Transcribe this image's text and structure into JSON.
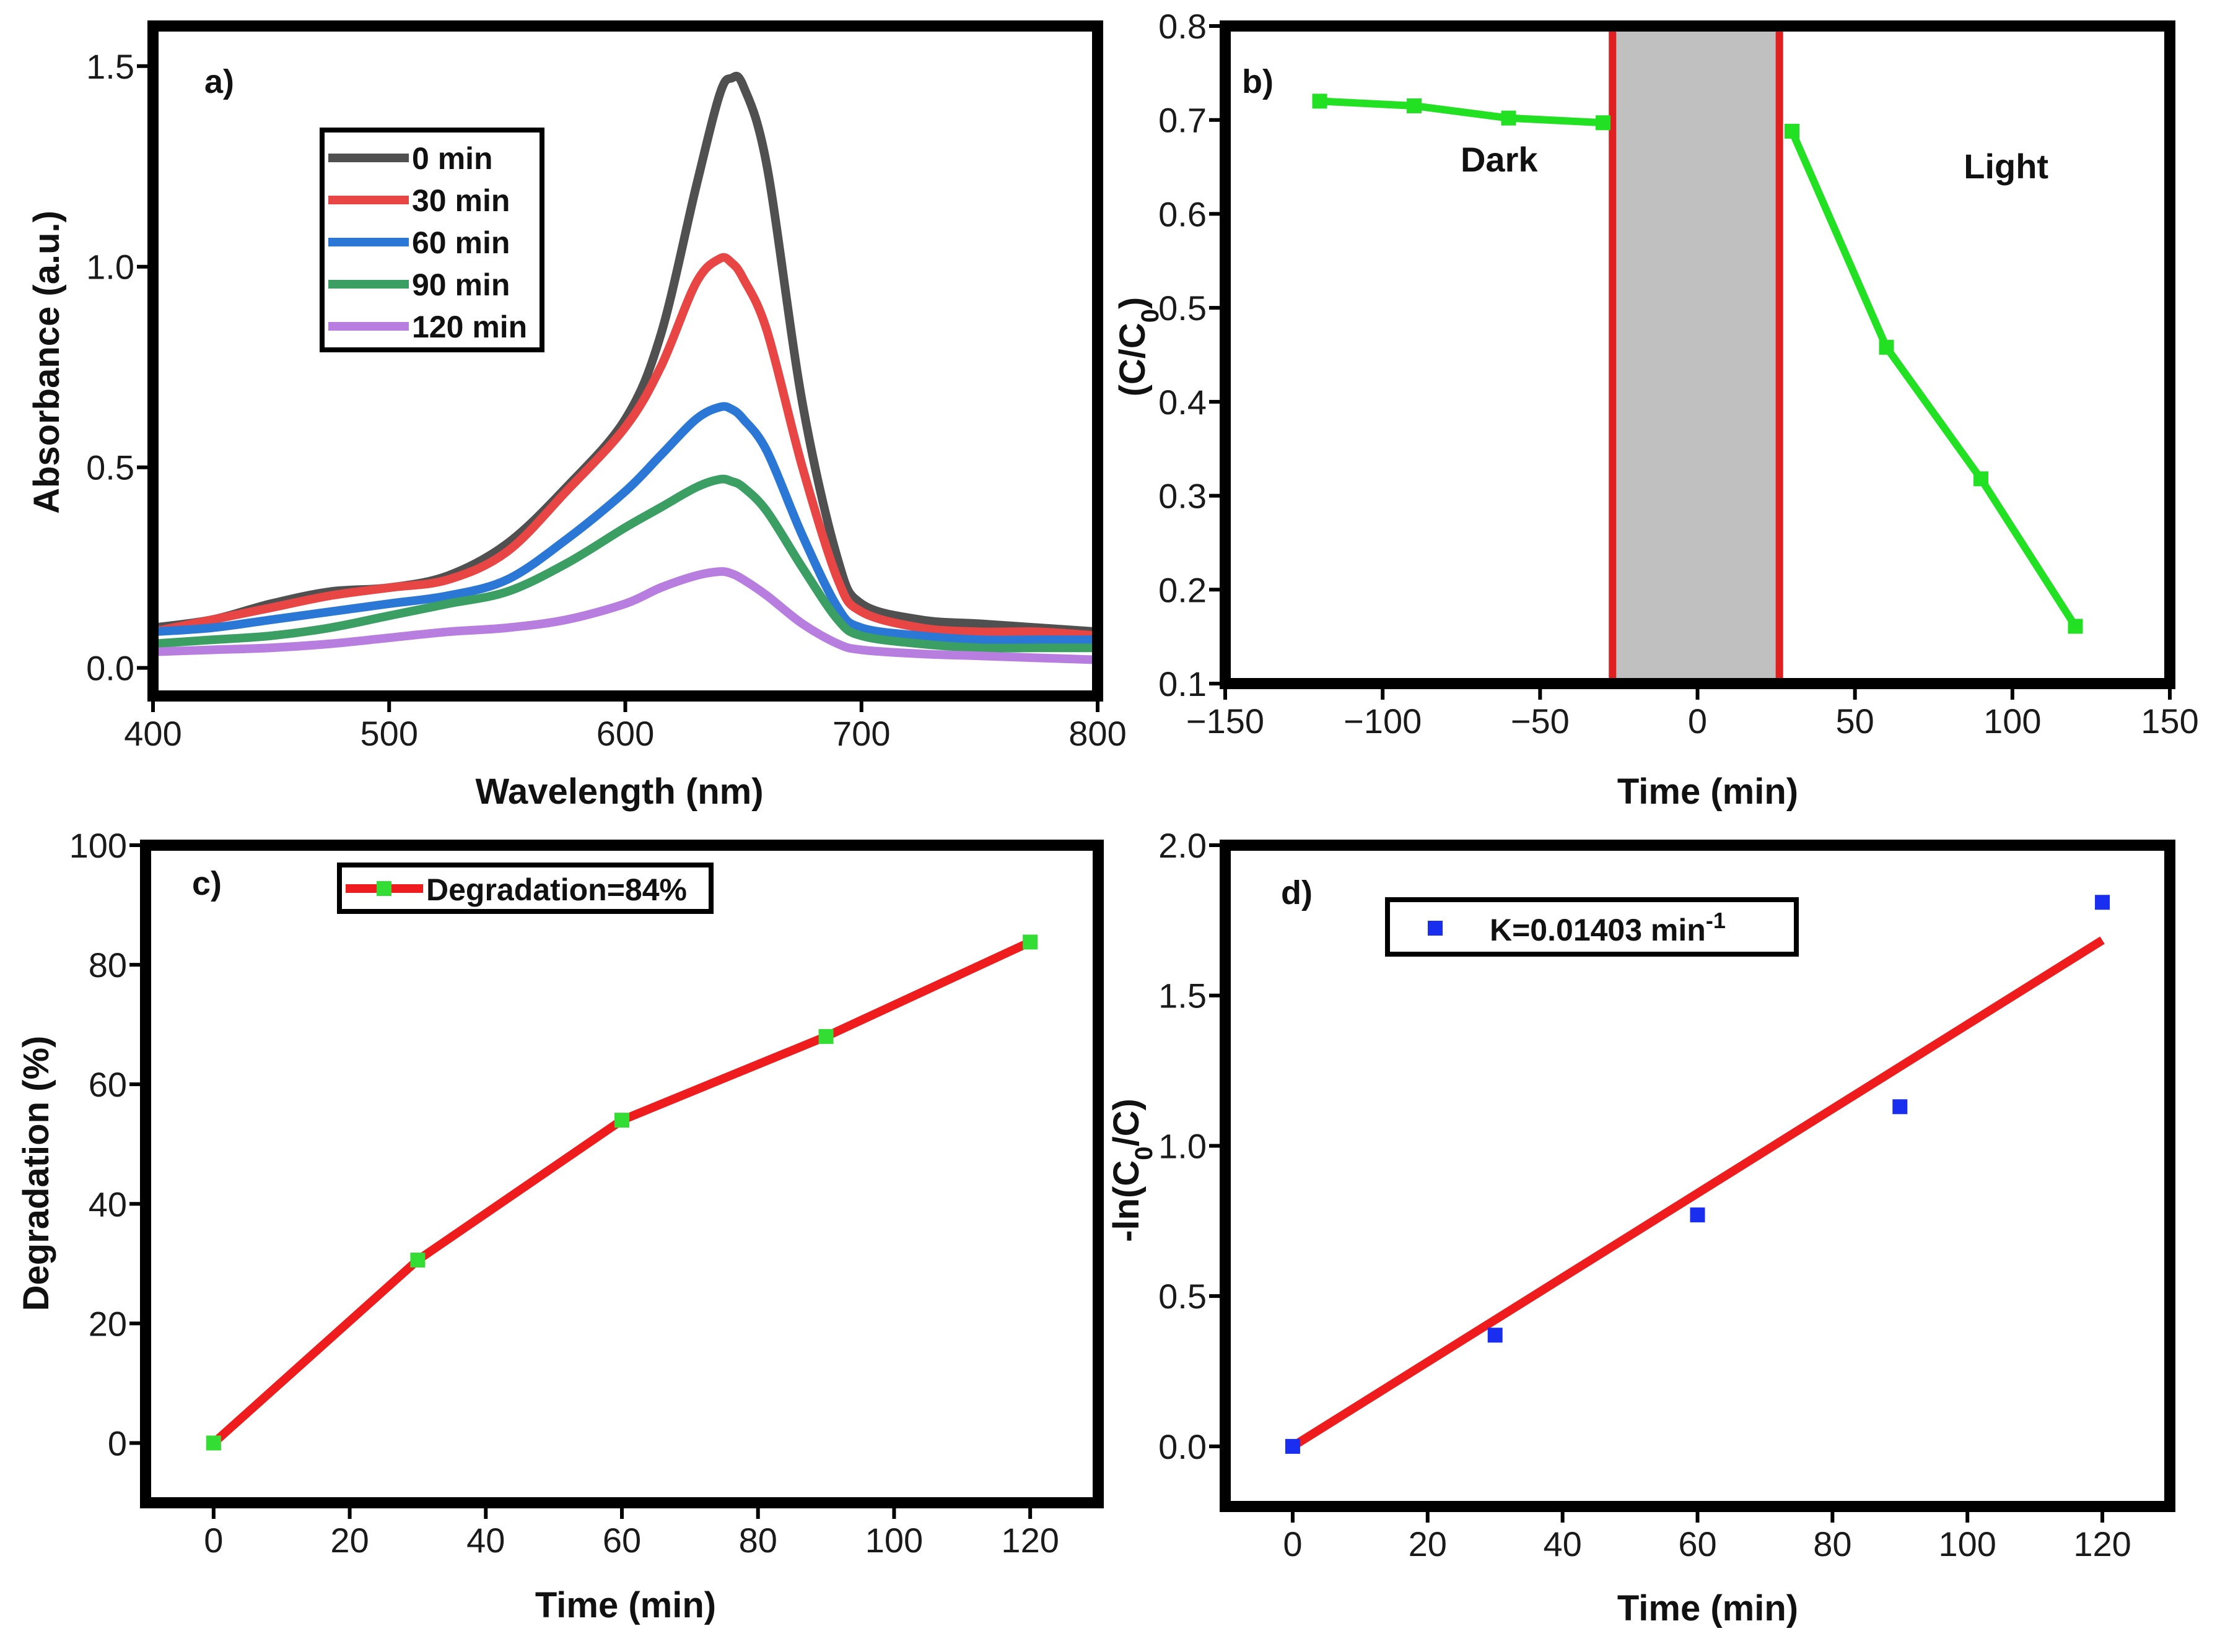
{
  "chart_data": [
    {
      "id": "a",
      "type": "line",
      "panel_label": "a)",
      "xlabel": "Wavelength (nm)",
      "ylabel": "Absorbance (a.u.)",
      "xlim": [
        400,
        800
      ],
      "ylim": [
        -0.07,
        1.6
      ],
      "xticks": [
        400,
        500,
        600,
        700,
        800
      ],
      "yticks": [
        0.0,
        0.5,
        1.0,
        1.5
      ],
      "ytick_labels": [
        "0.0",
        "0.5",
        "1.0",
        "1.5"
      ],
      "legend_position": "top-left",
      "series": [
        {
          "name": "0 min",
          "color": "#505050",
          "x": [
            400,
            425,
            450,
            475,
            500,
            525,
            550,
            575,
            600,
            615,
            630,
            640,
            645,
            650,
            660,
            675,
            690,
            700,
            725,
            750,
            775,
            800
          ],
          "y": [
            0.1,
            0.12,
            0.16,
            0.19,
            0.2,
            0.23,
            0.31,
            0.45,
            0.62,
            0.83,
            1.2,
            1.43,
            1.47,
            1.45,
            1.25,
            0.66,
            0.27,
            0.16,
            0.12,
            0.11,
            0.1,
            0.09
          ]
        },
        {
          "name": "30 min",
          "color": "#e84545",
          "x": [
            400,
            425,
            450,
            475,
            500,
            525,
            550,
            575,
            600,
            615,
            630,
            640,
            645,
            650,
            660,
            675,
            690,
            700,
            725,
            750,
            775,
            800
          ],
          "y": [
            0.09,
            0.12,
            0.15,
            0.18,
            0.2,
            0.22,
            0.29,
            0.44,
            0.6,
            0.75,
            0.96,
            1.02,
            1.01,
            0.97,
            0.84,
            0.5,
            0.22,
            0.14,
            0.1,
            0.09,
            0.09,
            0.08
          ]
        },
        {
          "name": "60 min",
          "color": "#2a77d6",
          "x": [
            400,
            425,
            450,
            475,
            500,
            525,
            550,
            575,
            600,
            615,
            630,
            640,
            645,
            650,
            660,
            675,
            690,
            700,
            725,
            750,
            775,
            800
          ],
          "y": [
            0.09,
            0.1,
            0.12,
            0.14,
            0.16,
            0.18,
            0.22,
            0.32,
            0.44,
            0.53,
            0.62,
            0.65,
            0.645,
            0.62,
            0.54,
            0.33,
            0.15,
            0.1,
            0.08,
            0.07,
            0.07,
            0.07
          ]
        },
        {
          "name": "90 min",
          "color": "#3b9e63",
          "x": [
            400,
            425,
            450,
            475,
            500,
            525,
            550,
            575,
            600,
            615,
            630,
            640,
            645,
            650,
            660,
            675,
            690,
            700,
            725,
            750,
            775,
            800
          ],
          "y": [
            0.06,
            0.07,
            0.08,
            0.1,
            0.13,
            0.16,
            0.19,
            0.26,
            0.35,
            0.4,
            0.45,
            0.47,
            0.465,
            0.45,
            0.39,
            0.25,
            0.12,
            0.08,
            0.06,
            0.05,
            0.05,
            0.05
          ]
        },
        {
          "name": "120 min",
          "color": "#b77ee0",
          "x": [
            400,
            425,
            450,
            475,
            500,
            525,
            550,
            575,
            600,
            615,
            630,
            640,
            645,
            650,
            660,
            675,
            690,
            700,
            725,
            750,
            775,
            800
          ],
          "y": [
            0.04,
            0.045,
            0.05,
            0.06,
            0.075,
            0.09,
            0.1,
            0.12,
            0.16,
            0.2,
            0.23,
            0.24,
            0.235,
            0.22,
            0.18,
            0.11,
            0.06,
            0.045,
            0.035,
            0.03,
            0.025,
            0.02
          ]
        }
      ]
    },
    {
      "id": "b",
      "type": "line",
      "panel_label": "b)",
      "xlabel": "Time (min)",
      "ylabel": "(C/C",
      "ylabel_subscript": "0",
      "ylabel_suffix": ")",
      "xlim": [
        -150,
        150
      ],
      "ylim": [
        0.1,
        0.8
      ],
      "xticks": [
        -150,
        -100,
        -50,
        0,
        50,
        100,
        150
      ],
      "xtick_labels": [
        "−150",
        "−100",
        "−50",
        "0",
        "50",
        "100",
        "150"
      ],
      "yticks": [
        0.1,
        0.2,
        0.3,
        0.4,
        0.5,
        0.6,
        0.7,
        0.8
      ],
      "ytick_labels": [
        "0.1",
        "0.2",
        "0.3",
        "0.4",
        "0.5",
        "0.6",
        "0.7",
        "0.8"
      ],
      "shaded_region": {
        "x_start": -27,
        "x_end": 26,
        "fill": "#c0c0c0",
        "edge": "#e02020"
      },
      "annotations": [
        {
          "text": "Dark",
          "x": -63,
          "y": 0.645
        },
        {
          "text": "Light",
          "x": 98,
          "y": 0.638
        }
      ],
      "series": [
        {
          "name": "Dark",
          "color": "#22e022",
          "x": [
            -120,
            -90,
            -60,
            -30
          ],
          "y": [
            0.72,
            0.715,
            0.702,
            0.697
          ]
        },
        {
          "name": "Light",
          "color": "#22e022",
          "x": [
            30,
            60,
            90,
            120
          ],
          "y": [
            0.688,
            0.458,
            0.318,
            0.161
          ]
        }
      ]
    },
    {
      "id": "c",
      "type": "line",
      "panel_label": "c)",
      "xlabel": "Time (min)",
      "ylabel": "Degradation (%)",
      "xlim": [
        -10,
        130
      ],
      "ylim": [
        -10,
        100
      ],
      "xticks": [
        0,
        20,
        40,
        60,
        80,
        100,
        120
      ],
      "yticks": [
        0,
        20,
        40,
        60,
        80,
        100
      ],
      "legend_position": "top-center",
      "series": [
        {
          "name": "Degradation=84%",
          "color": "#ee1c1c",
          "marker_color": "#33dd33",
          "x": [
            0,
            30,
            60,
            90,
            120
          ],
          "y": [
            0,
            30.6,
            54.0,
            68.0,
            83.8
          ]
        }
      ]
    },
    {
      "id": "d",
      "type": "scatter",
      "panel_label": "d)",
      "xlabel": "Time (min)",
      "ylabel": "-ln(C",
      "ylabel_subscript": "0",
      "ylabel_suffix": "/C)",
      "xlim": [
        -10,
        130
      ],
      "ylim": [
        -0.2,
        2.0
      ],
      "xticks": [
        0,
        20,
        40,
        60,
        80,
        100,
        120
      ],
      "yticks": [
        0.0,
        0.5,
        1.0,
        1.5,
        2.0
      ],
      "ytick_labels": [
        "0.0",
        "0.5",
        "1.0",
        "1.5",
        "2.0"
      ],
      "legend_position": "top-center",
      "legend_label": "K=0.01403 min",
      "legend_superscript": "-1",
      "points": {
        "color": "#1a2ef0",
        "x": [
          0,
          30,
          60,
          90,
          120
        ],
        "y": [
          0.0,
          0.37,
          0.77,
          1.13,
          1.81
        ]
      },
      "fit_line": {
        "color": "#ee1c1c",
        "x": [
          0,
          120
        ],
        "y": [
          0.0,
          1.684
        ]
      }
    }
  ]
}
